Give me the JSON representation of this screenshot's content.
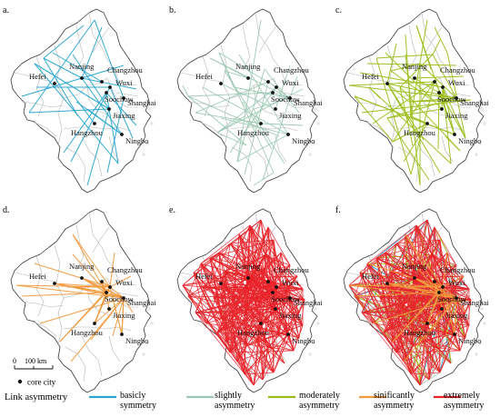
{
  "panels": [
    {
      "label": "a.",
      "key": "basic"
    },
    {
      "label": "b.",
      "key": "slight"
    },
    {
      "label": "c.",
      "key": "moderate"
    },
    {
      "label": "d.",
      "key": "significant"
    },
    {
      "label": "e.",
      "key": "extreme"
    },
    {
      "label": "f.",
      "key": "all"
    }
  ],
  "cities": [
    {
      "name": "Hefei"
    },
    {
      "name": "Nanjing"
    },
    {
      "name": "Changzhou"
    },
    {
      "name": "Wuxi"
    },
    {
      "name": "Soochow"
    },
    {
      "name": "Shanghai"
    },
    {
      "name": "Jiaxing"
    },
    {
      "name": "Hangzhou"
    },
    {
      "name": "Ningbo"
    }
  ],
  "scale_bar": {
    "zero": "0",
    "distance": "100 km"
  },
  "core_city_legend": "core city",
  "legend": {
    "title": "Link asymmetry",
    "items": [
      {
        "line1": "basicly",
        "line2": "symmetry",
        "color": "#27a4cf"
      },
      {
        "line1": "slightly",
        "line2": "asymmetry",
        "color": "#9cc7b4"
      },
      {
        "line1": "moderately",
        "line2": "asymmetry",
        "color": "#9bbd18"
      },
      {
        "line1": "sinificantly",
        "line2": "asymmetry",
        "color": "#f19a3e"
      },
      {
        "line1": "extremely",
        "line2": "asymmetry",
        "color": "#e8242a"
      }
    ]
  },
  "colors": {
    "boundary": "#3a3a3a",
    "inner_boundary": "#b5b5b5",
    "basic": "#27a4cf",
    "slight": "#9cc7b4",
    "moderate": "#9bbd18",
    "significant": "#f19a3e",
    "extreme": "#e8242a"
  }
}
